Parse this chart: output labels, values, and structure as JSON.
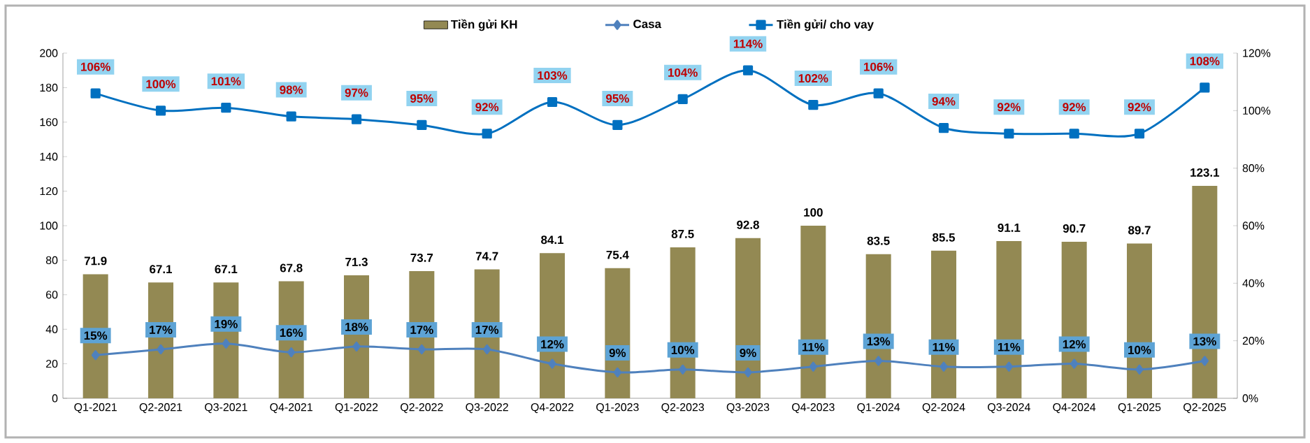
{
  "chart_data": {
    "type": "bar",
    "categories": [
      "Q1-2021",
      "Q2-2021",
      "Q3-2021",
      "Q4-2021",
      "Q1-2022",
      "Q2-2022",
      "Q3-2022",
      "Q4-2022",
      "Q1-2023",
      "Q2-2023",
      "Q3-2023",
      "Q4-2023",
      "Q1-2024",
      "Q2-2024",
      "Q3-2024",
      "Q4-2024",
      "Q1-2025",
      "Q2-2025"
    ],
    "series": [
      {
        "name": "Tiền gửi KH",
        "color": "#938953",
        "values": [
          71.9,
          67.1,
          67.1,
          67.8,
          71.3,
          73.7,
          74.7,
          84.1,
          75.4,
          87.5,
          92.8,
          100,
          83.5,
          85.5,
          91.1,
          90.7,
          89.7,
          123.1
        ],
        "value_labels": [
          "71.9",
          "67.1",
          "67.1",
          "67.8",
          "71.3",
          "73.7",
          "74.7",
          "84.1",
          "75.4",
          "87.5",
          "92.8",
          "100",
          "83.5",
          "85.5",
          "91.1",
          "90.7",
          "89.7",
          "123.1"
        ]
      },
      {
        "name": "Casa",
        "type": "line",
        "axis": "y2",
        "color": "#4f81bd",
        "marker": "diamond",
        "values": [
          15,
          17,
          19,
          16,
          18,
          17,
          17,
          12,
          9,
          10,
          9,
          11,
          13,
          11,
          11,
          12,
          10,
          13
        ],
        "value_labels": [
          "15%",
          "17%",
          "19%",
          "16%",
          "18%",
          "17%",
          "17%",
          "12%",
          "9%",
          "10%",
          "9%",
          "11%",
          "13%",
          "11%",
          "11%",
          "12%",
          "10%",
          "13%"
        ]
      },
      {
        "name": "Tiền gửi/ cho vay",
        "type": "line",
        "axis": "y2",
        "color": "#0070c0",
        "marker": "square",
        "values": [
          106,
          100,
          101,
          98,
          97,
          95,
          92,
          103,
          95,
          104,
          114,
          102,
          106,
          94,
          92,
          92,
          92,
          108
        ],
        "value_labels": [
          "106%",
          "100%",
          "101%",
          "98%",
          "97%",
          "95%",
          "92%",
          "103%",
          "95%",
          "104%",
          "114%",
          "102%",
          "106%",
          "94%",
          "92%",
          "92%",
          "92%",
          "108%"
        ]
      }
    ],
    "ylim": [
      0,
      200
    ],
    "yticks": [
      0,
      20,
      40,
      60,
      80,
      100,
      120,
      140,
      160,
      180,
      200
    ],
    "y2lim": [
      0,
      120
    ],
    "y2ticks": [
      {
        "value": 0,
        "label": "0%"
      },
      {
        "value": 20,
        "label": "20%"
      },
      {
        "value": 40,
        "label": "40%"
      },
      {
        "value": 60,
        "label": "60%"
      },
      {
        "value": 80,
        "label": "80%"
      },
      {
        "value": 100,
        "label": "100%"
      },
      {
        "value": 120,
        "label": "120%"
      }
    ],
    "legend": "top",
    "grid": false
  }
}
